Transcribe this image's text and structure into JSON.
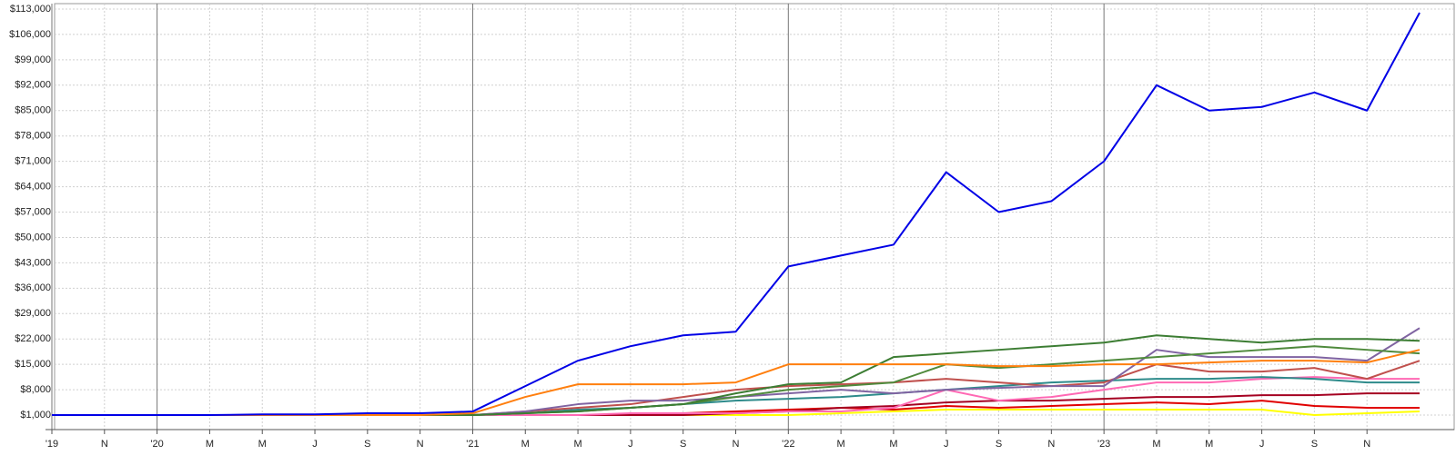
{
  "chart_data": {
    "type": "line",
    "categories": [
      "'19",
      "N",
      "'20",
      "M",
      "M",
      "J",
      "S",
      "N",
      "'21",
      "M",
      "M",
      "J",
      "S",
      "N",
      "'22",
      "M",
      "M",
      "J",
      "S",
      "N",
      "'23",
      "M",
      "M",
      "J",
      "S",
      "N",
      null
    ],
    "ylim": [
      -3000,
      114500
    ],
    "yticks": [
      {
        "value": 1000,
        "label": "$1,000"
      },
      {
        "value": 8000,
        "label": "$8,000"
      },
      {
        "value": 15000,
        "label": "$15,000"
      },
      {
        "value": 22000,
        "label": "$22,000"
      },
      {
        "value": 29000,
        "label": "$29,000"
      },
      {
        "value": 36000,
        "label": "$36,000"
      },
      {
        "value": 43000,
        "label": "$43,000"
      },
      {
        "value": 50000,
        "label": "$50,000"
      },
      {
        "value": 57000,
        "label": "$57,000"
      },
      {
        "value": 64000,
        "label": "$64,000"
      },
      {
        "value": 71000,
        "label": "$71,000"
      },
      {
        "value": 78000,
        "label": "$78,000"
      },
      {
        "value": 85000,
        "label": "$85,000"
      },
      {
        "value": 92000,
        "label": "$92,000"
      },
      {
        "value": 99000,
        "label": "$99,000"
      },
      {
        "value": 106000,
        "label": "$106,000"
      },
      {
        "value": 113000,
        "label": "$113,000"
      }
    ],
    "grid": true,
    "series": [
      {
        "color": "#ffff00",
        "values": [
          1000,
          1000,
          1000,
          1000,
          1000,
          1000,
          1000,
          1000,
          1000,
          1000,
          1000,
          1000,
          1000,
          1000,
          1000,
          1500,
          2000,
          2500,
          2500,
          2500,
          2500,
          2500,
          2500,
          2500,
          1000,
          1500,
          2000
        ]
      },
      {
        "color": "#e00000",
        "values": [
          1000,
          1000,
          1000,
          1000,
          1000,
          1000,
          1000,
          1000,
          1000,
          1000,
          1000,
          1000,
          1500,
          2000,
          2500,
          3000,
          2500,
          3500,
          3000,
          3500,
          4000,
          4500,
          4000,
          5000,
          3500,
          3000,
          3000
        ]
      },
      {
        "color": "#a50021",
        "values": [
          1000,
          1000,
          1000,
          1000,
          1000,
          1000,
          1000,
          1000,
          1000,
          1000,
          1000,
          1000,
          1000,
          1500,
          2000,
          3000,
          3500,
          4500,
          5000,
          5000,
          5500,
          6000,
          6000,
          6500,
          6500,
          7000,
          7000
        ]
      },
      {
        "color": "#ff69b4",
        "values": [
          1000,
          1000,
          1000,
          1000,
          1000,
          1000,
          1000,
          1000,
          1000,
          1000,
          1000,
          1500,
          1500,
          1500,
          2000,
          2000,
          3000,
          8000,
          5000,
          6000,
          8000,
          10000,
          10000,
          11000,
          11500,
          11000,
          11000
        ]
      },
      {
        "color": "#2e8b8b",
        "values": [
          1000,
          1000,
          1000,
          1000,
          1000,
          1000,
          1000,
          1000,
          1000,
          1500,
          2500,
          3000,
          4000,
          5000,
          5500,
          6000,
          7000,
          8000,
          9000,
          10000,
          10500,
          11000,
          11000,
          11500,
          11000,
          10000,
          10000
        ]
      },
      {
        "color": "#c0504d",
        "values": [
          1000,
          1000,
          1000,
          1000,
          1000,
          1000,
          1000,
          1000,
          1000,
          2000,
          3000,
          4000,
          6000,
          8000,
          9000,
          9500,
          10000,
          11000,
          10000,
          9000,
          10000,
          15000,
          13000,
          13000,
          14000,
          11000,
          16000
        ]
      },
      {
        "color": "#8064a2",
        "values": [
          1000,
          1000,
          1000,
          1000,
          1000,
          1000,
          1000,
          1000,
          1000,
          2000,
          4000,
          5000,
          5000,
          6000,
          7000,
          8000,
          7000,
          8000,
          8500,
          9000,
          9000,
          19000,
          17000,
          17000,
          17000,
          16000,
          25000
        ]
      },
      {
        "color": "#4f8a3c",
        "values": [
          1000,
          1000,
          1000,
          1000,
          1000,
          1000,
          1000,
          1000,
          1000,
          1500,
          2000,
          3000,
          4000,
          6000,
          8000,
          9000,
          10000,
          15000,
          14000,
          15000,
          16000,
          17000,
          18000,
          19000,
          20000,
          19000,
          18000
        ]
      },
      {
        "color": "#3c7d33",
        "values": [
          1000,
          1000,
          1000,
          1000,
          1000,
          1000,
          1000,
          1000,
          1000,
          1500,
          2000,
          3000,
          4000,
          7000,
          9500,
          10000,
          17000,
          18000,
          19000,
          20000,
          21000,
          23000,
          22000,
          21000,
          22000,
          22000,
          21500
        ]
      },
      {
        "color": "#ff7f0e",
        "values": [
          1000,
          1000,
          1000,
          1000,
          1000,
          1000,
          1000,
          1000,
          1500,
          6000,
          9500,
          9500,
          9500,
          10000,
          15000,
          15000,
          15000,
          15000,
          14500,
          14500,
          15000,
          15000,
          15500,
          16000,
          16000,
          15500,
          19000
        ]
      },
      {
        "color": "#0000e6",
        "values": [
          1000,
          1000,
          1000,
          1000,
          1200,
          1200,
          1500,
          1500,
          2000,
          9000,
          16000,
          20000,
          23000,
          24000,
          42000,
          45000,
          48000,
          68000,
          57000,
          60000,
          71000,
          92000,
          85000,
          86000,
          90000,
          85000,
          112000
        ]
      }
    ]
  }
}
